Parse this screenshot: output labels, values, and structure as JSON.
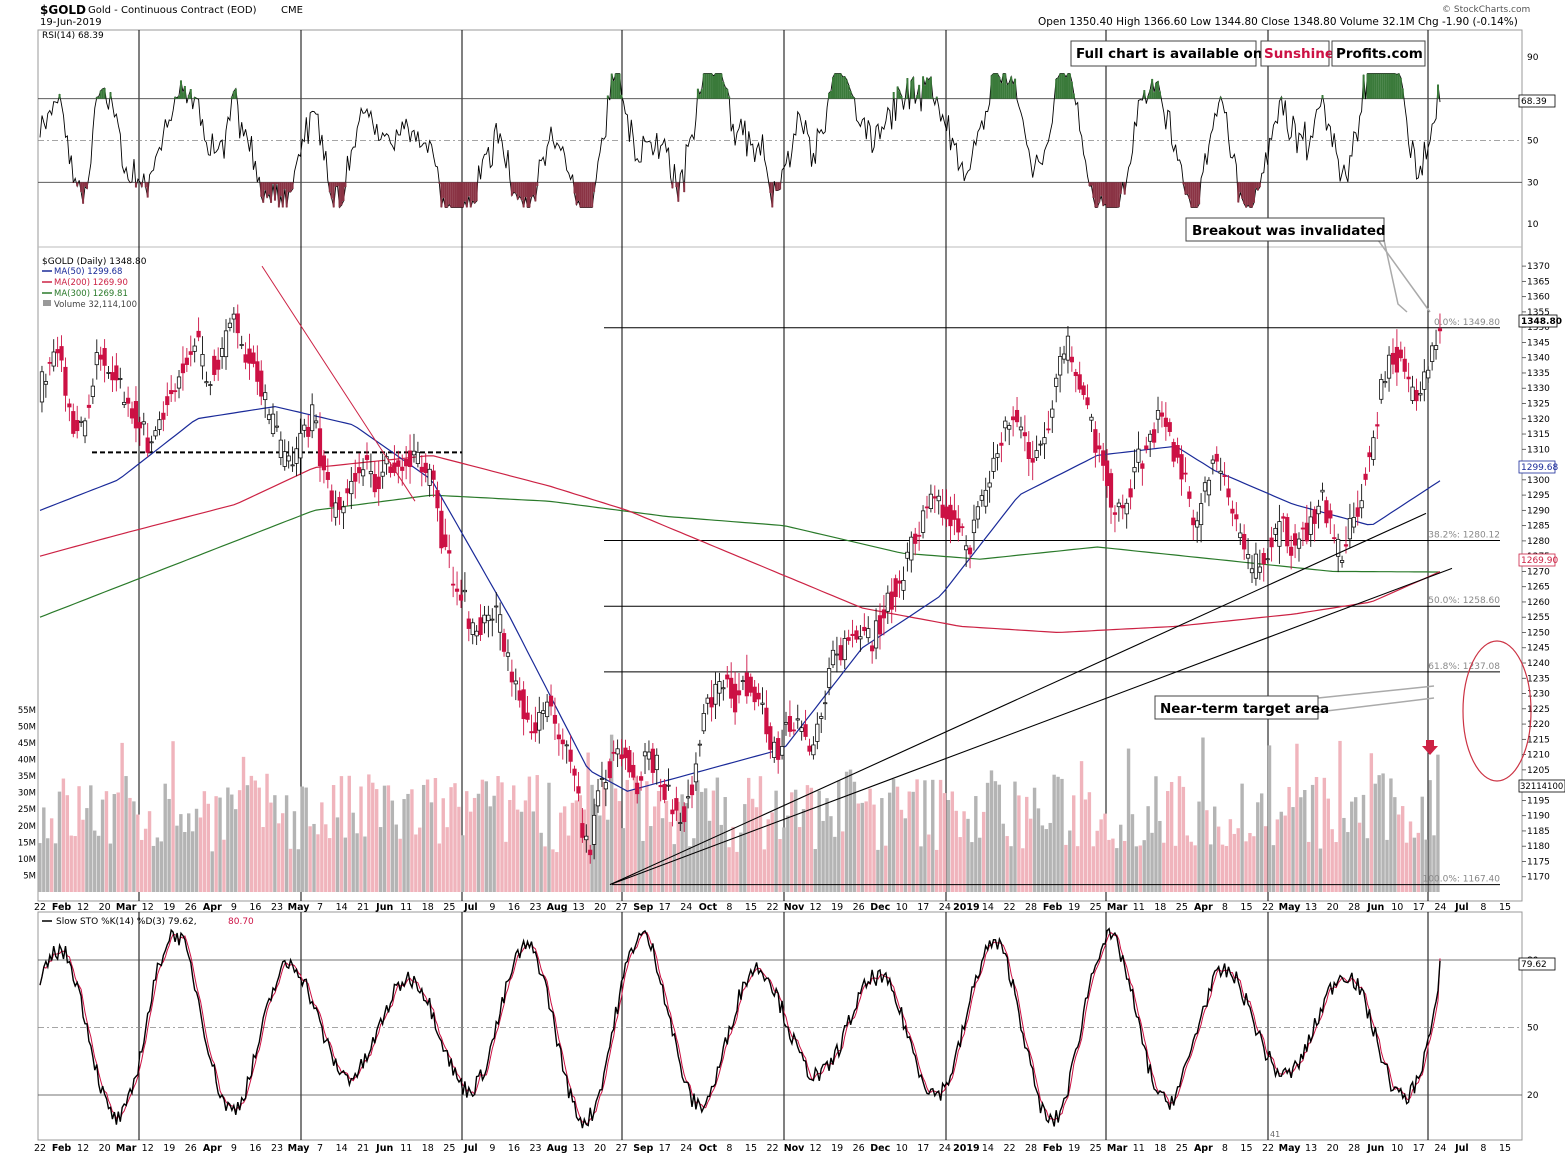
{
  "header": {
    "symbol": "$GOLD",
    "description": "Gold - Continuous Contract (EOD)",
    "exchange": "CME",
    "date": "19-Jun-2019",
    "quote": "Open 1350.40  High 1366.60  Low 1344.80  Close 1348.80  Volume 32.1M  Chg -1.90 (-0.14%)",
    "brand": "© StockCharts.com"
  },
  "rsi": {
    "label": "RSI(14) 68.39",
    "value_tag": "68.39",
    "ticks": [
      "90",
      "70",
      "50",
      "30",
      "10"
    ]
  },
  "price_panel": {
    "legend": {
      "main": "$GOLD (Daily) 1348.80",
      "ma50": "MA(50) 1299.68",
      "ma200": "MA(200) 1269.90",
      "ma300": "MA(300) 1269.81",
      "volume": "Volume 32,114,100"
    },
    "last_price": "1348.80",
    "ma50_tag": "1299.68",
    "ma200_tag": "1269.90",
    "volume_tag": "32114100",
    "fib_labels": [
      "0.0%: 1349.80",
      "38.2%: 1280.12",
      "50.0%: 1258.60",
      "61.8%: 1237.08",
      "100.0%: 1167.40"
    ],
    "banner_left": "Full chart is available on",
    "banner_sun": "Sunshine",
    "banner_profits": "Profits.com",
    "annotation_breakout": "Breakout was invalidated",
    "annotation_target": "Near-term target area",
    "volume_ticks": [
      "55M",
      "50M",
      "45M",
      "40M",
      "35M",
      "30M",
      "25M",
      "20M",
      "15M",
      "10M",
      "5M"
    ]
  },
  "x_axis": {
    "labels": [
      "22",
      "Feb",
      "12",
      "20",
      "Mar",
      "12",
      "19",
      "26",
      "Apr",
      "9",
      "16",
      "23",
      "May",
      "7",
      "14",
      "21",
      "Jun",
      "11",
      "18",
      "25",
      "Jul",
      "9",
      "16",
      "23",
      "Aug",
      "13",
      "20",
      "27",
      "Sep",
      "17",
      "24",
      "Oct",
      "8",
      "15",
      "22",
      "Nov",
      "12",
      "19",
      "26",
      "Dec",
      "10",
      "17",
      "24",
      "2019",
      "14",
      "22",
      "28",
      "Feb",
      "19",
      "25",
      "Mar",
      "11",
      "18",
      "25",
      "Apr",
      "8",
      "15",
      "22",
      "May",
      "13",
      "20",
      "28",
      "Jun",
      "10",
      "17",
      "24",
      "Jul",
      "8",
      "15"
    ]
  },
  "sto": {
    "label_black": "Slow STO %K(14) %D(3) 79.62,",
    "label_red": "80.70",
    "value_tag": "79.62",
    "ticks": [
      "80",
      "50",
      "20"
    ],
    "bottom_note": "41"
  },
  "colors": {
    "up": "#111111",
    "down": "#cc1144",
    "ma50": "#1a2a99",
    "ma200": "#cc2244",
    "ma300": "#2a7a2a",
    "vol_up": "#b4b4b4",
    "vol_down": "#f0b4bc"
  },
  "chart_data": {
    "type": "candlestick",
    "title": "$GOLD Gold - Continuous Contract (EOD) CME",
    "y_range": [
      1165,
      1372
    ],
    "y_ticks": [
      1170,
      1175,
      1180,
      1185,
      1190,
      1195,
      1200,
      1205,
      1210,
      1215,
      1220,
      1225,
      1230,
      1235,
      1240,
      1245,
      1250,
      1255,
      1260,
      1265,
      1270,
      1275,
      1280,
      1285,
      1290,
      1295,
      1300,
      1305,
      1310,
      1315,
      1320,
      1325,
      1330,
      1335,
      1340,
      1345,
      1350,
      1355,
      1360,
      1365,
      1370
    ],
    "close_path": [
      [
        0,
        1330
      ],
      [
        5,
        1338
      ],
      [
        10,
        1342
      ],
      [
        15,
        1322
      ],
      [
        20,
        1315
      ],
      [
        25,
        1322
      ],
      [
        30,
        1342
      ],
      [
        35,
        1337
      ],
      [
        40,
        1331
      ],
      [
        45,
        1325
      ],
      [
        50,
        1320
      ],
      [
        55,
        1312
      ],
      [
        60,
        1318
      ],
      [
        65,
        1325
      ],
      [
        70,
        1330
      ],
      [
        75,
        1340
      ],
      [
        80,
        1346
      ],
      [
        85,
        1333
      ],
      [
        90,
        1338
      ],
      [
        95,
        1345
      ],
      [
        100,
        1352
      ],
      [
        105,
        1343
      ],
      [
        110,
        1337
      ],
      [
        115,
        1325
      ],
      [
        120,
        1316
      ],
      [
        125,
        1305
      ],
      [
        130,
        1308
      ],
      [
        135,
        1316
      ],
      [
        140,
        1322
      ],
      [
        145,
        1300
      ],
      [
        150,
        1290
      ],
      [
        155,
        1292
      ],
      [
        160,
        1300
      ],
      [
        165,
        1305
      ],
      [
        170,
        1298
      ],
      [
        175,
        1302
      ],
      [
        180,
        1306
      ],
      [
        185,
        1303
      ],
      [
        190,
        1310
      ],
      [
        195,
        1305
      ],
      [
        200,
        1300
      ],
      [
        205,
        1282
      ],
      [
        210,
        1270
      ],
      [
        215,
        1265
      ],
      [
        220,
        1252
      ],
      [
        225,
        1250
      ],
      [
        230,
        1258
      ],
      [
        235,
        1252
      ],
      [
        240,
        1240
      ],
      [
        245,
        1228
      ],
      [
        250,
        1222
      ],
      [
        255,
        1220
      ],
      [
        260,
        1225
      ],
      [
        265,
        1216
      ],
      [
        270,
        1210
      ],
      [
        275,
        1193
      ],
      [
        278,
        1178
      ],
      [
        282,
        1182
      ],
      [
        285,
        1196
      ],
      [
        290,
        1205
      ],
      [
        295,
        1210
      ],
      [
        300,
        1208
      ],
      [
        305,
        1200
      ],
      [
        310,
        1210
      ],
      [
        315,
        1206
      ],
      [
        320,
        1198
      ],
      [
        325,
        1190
      ],
      [
        330,
        1193
      ],
      [
        335,
        1205
      ],
      [
        340,
        1225
      ],
      [
        345,
        1232
      ],
      [
        350,
        1235
      ],
      [
        355,
        1228
      ],
      [
        360,
        1234
      ],
      [
        365,
        1228
      ],
      [
        370,
        1222
      ],
      [
        375,
        1210
      ],
      [
        380,
        1216
      ],
      [
        385,
        1222
      ],
      [
        390,
        1220
      ],
      [
        395,
        1212
      ],
      [
        400,
        1225
      ],
      [
        405,
        1240
      ],
      [
        410,
        1245
      ],
      [
        415,
        1250
      ],
      [
        420,
        1253
      ],
      [
        425,
        1248
      ],
      [
        430,
        1255
      ],
      [
        435,
        1262
      ],
      [
        440,
        1268
      ],
      [
        445,
        1278
      ],
      [
        450,
        1285
      ],
      [
        455,
        1292
      ],
      [
        460,
        1290
      ],
      [
        465,
        1288
      ],
      [
        470,
        1282
      ],
      [
        475,
        1280
      ],
      [
        480,
        1290
      ],
      [
        485,
        1300
      ],
      [
        490,
        1312
      ],
      [
        495,
        1320
      ],
      [
        500,
        1318
      ],
      [
        505,
        1310
      ],
      [
        510,
        1308
      ],
      [
        515,
        1320
      ],
      [
        520,
        1338
      ],
      [
        525,
        1344
      ],
      [
        530,
        1335
      ],
      [
        535,
        1322
      ],
      [
        540,
        1310
      ],
      [
        545,
        1300
      ],
      [
        550,
        1288
      ],
      [
        555,
        1292
      ],
      [
        560,
        1305
      ],
      [
        565,
        1310
      ],
      [
        570,
        1318
      ],
      [
        575,
        1320
      ],
      [
        580,
        1308
      ],
      [
        585,
        1298
      ],
      [
        590,
        1285
      ],
      [
        595,
        1296
      ],
      [
        600,
        1310
      ],
      [
        605,
        1300
      ],
      [
        610,
        1285
      ],
      [
        615,
        1276
      ],
      [
        620,
        1272
      ],
      [
        625,
        1275
      ],
      [
        630,
        1281
      ],
      [
        635,
        1285
      ],
      [
        640,
        1278
      ],
      [
        645,
        1282
      ],
      [
        650,
        1288
      ],
      [
        655,
        1295
      ],
      [
        660,
        1280
      ],
      [
        665,
        1275
      ],
      [
        670,
        1285
      ],
      [
        675,
        1296
      ],
      [
        680,
        1310
      ],
      [
        685,
        1330
      ],
      [
        690,
        1342
      ],
      [
        695,
        1338
      ],
      [
        700,
        1328
      ],
      [
        705,
        1332
      ],
      [
        710,
        1340
      ],
      [
        712,
        1345
      ],
      [
        715,
        1348.8
      ]
    ],
    "bars_total": 715,
    "ma50_path": [
      [
        0,
        1290
      ],
      [
        40,
        1300
      ],
      [
        80,
        1320
      ],
      [
        120,
        1324
      ],
      [
        160,
        1318
      ],
      [
        200,
        1300
      ],
      [
        240,
        1255
      ],
      [
        280,
        1205
      ],
      [
        300,
        1198
      ],
      [
        340,
        1205
      ],
      [
        380,
        1212
      ],
      [
        420,
        1245
      ],
      [
        460,
        1262
      ],
      [
        500,
        1295
      ],
      [
        540,
        1308
      ],
      [
        580,
        1311
      ],
      [
        600,
        1303
      ],
      [
        640,
        1292
      ],
      [
        680,
        1285
      ],
      [
        715,
        1299.68
      ]
    ],
    "ma200_path": [
      [
        0,
        1275
      ],
      [
        40,
        1282
      ],
      [
        100,
        1292
      ],
      [
        140,
        1304
      ],
      [
        200,
        1308
      ],
      [
        260,
        1298
      ],
      [
        300,
        1290
      ],
      [
        360,
        1274
      ],
      [
        420,
        1258
      ],
      [
        470,
        1252
      ],
      [
        520,
        1250
      ],
      [
        580,
        1252
      ],
      [
        640,
        1256
      ],
      [
        680,
        1260
      ],
      [
        715,
        1269.9
      ]
    ],
    "ma300_path": [
      [
        0,
        1255
      ],
      [
        60,
        1270
      ],
      [
        140,
        1290
      ],
      [
        200,
        1295
      ],
      [
        260,
        1293
      ],
      [
        320,
        1288
      ],
      [
        380,
        1285
      ],
      [
        440,
        1276
      ],
      [
        480,
        1274
      ],
      [
        540,
        1278
      ],
      [
        600,
        1274
      ],
      [
        660,
        1270
      ],
      [
        715,
        1269.81
      ]
    ],
    "fibonacci": [
      {
        "label": "0.0%",
        "value": 1349.8
      },
      {
        "label": "38.2%",
        "value": 1280.12
      },
      {
        "label": "50.0%",
        "value": 1258.6
      },
      {
        "label": "61.8%",
        "value": 1237.08
      },
      {
        "label": "100.0%",
        "value": 1167.4
      }
    ],
    "last_close": 1348.8,
    "rsi_range": [
      0,
      100
    ],
    "rsi_levels": [
      70,
      50,
      30
    ],
    "rsi_last": 68.39,
    "sto_range": [
      0,
      100
    ],
    "sto_levels": [
      80,
      50,
      20
    ],
    "sto_k_last": 79.62,
    "sto_d_last": 80.7,
    "volume_range_millions": [
      0,
      58
    ],
    "volume_last": 32114100
  }
}
